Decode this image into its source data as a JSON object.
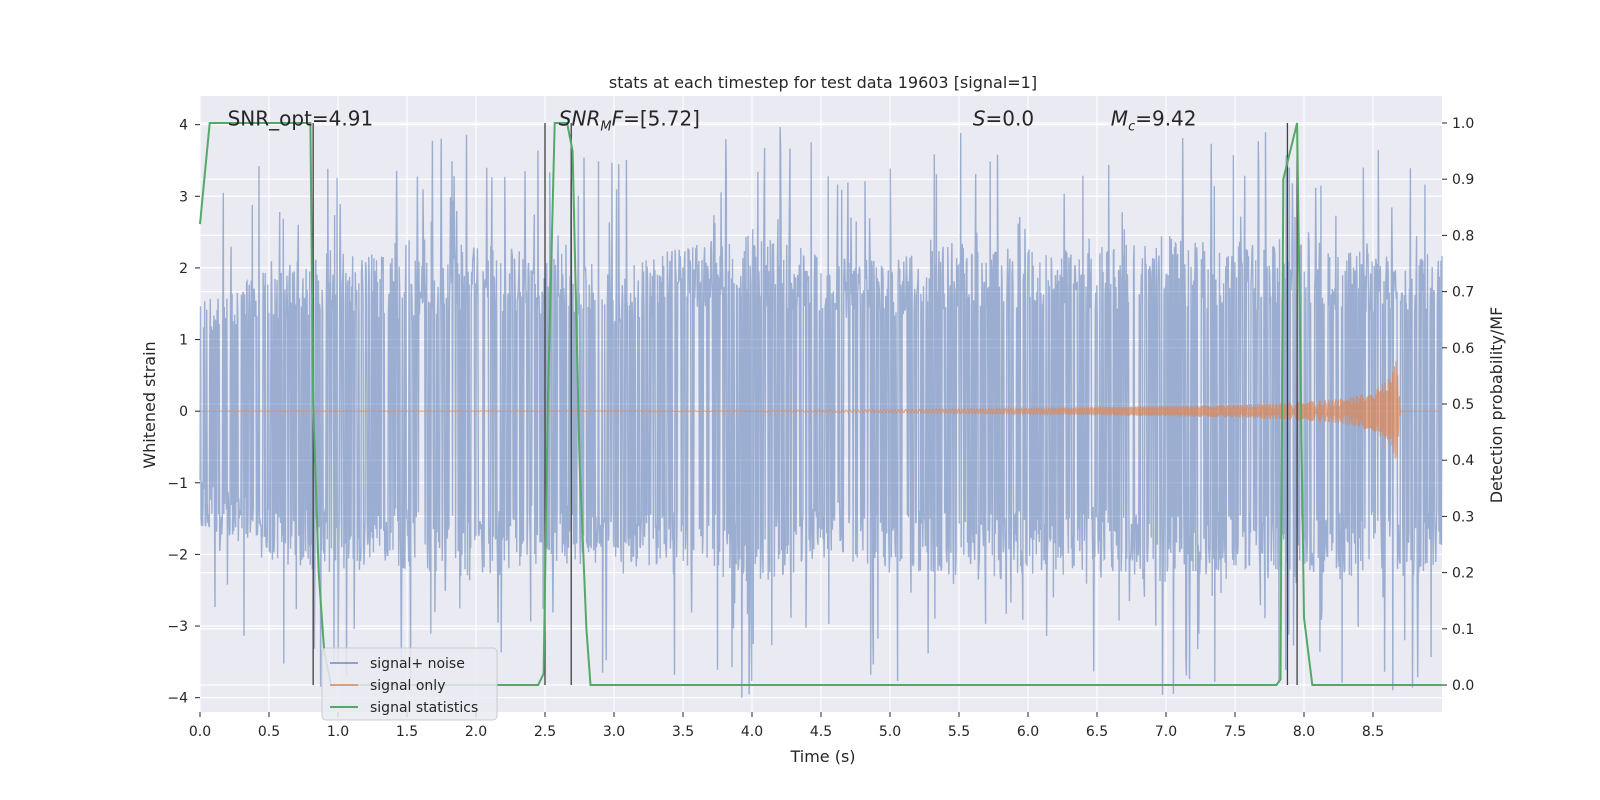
{
  "chart_data": {
    "type": "line",
    "title": "stats at each timestep for test data 19603 [signal=1]",
    "xlabel": "Time (s)",
    "ylabel": "Whitened strain",
    "y2label": "Detection probability/MF",
    "xlim": [
      0.0,
      9.0
    ],
    "ylim": [
      -4.2,
      4.4
    ],
    "y2lim": [
      -0.048,
      1.048
    ],
    "x_ticks": [
      "0.0",
      "0.5",
      "1.0",
      "1.5",
      "2.0",
      "2.5",
      "3.0",
      "3.5",
      "4.0",
      "4.5",
      "5.0",
      "5.5",
      "6.0",
      "6.5",
      "7.0",
      "7.5",
      "8.0",
      "8.5"
    ],
    "y_ticks": [
      "4",
      "3",
      "2",
      "1",
      "0",
      "−1",
      "−2",
      "−3",
      "−4"
    ],
    "y2_ticks": [
      "1.0",
      "0.9",
      "0.8",
      "0.7",
      "0.6",
      "0.5",
      "0.4",
      "0.3",
      "0.2",
      "0.1",
      "0.0"
    ],
    "grid": true,
    "legend_position": "lower-left",
    "annotations": [
      {
        "id": "snr-opt",
        "text": "SNR_opt=4.91",
        "x": 0.2,
        "y": 4.1
      },
      {
        "id": "snr-mf",
        "text": "SNR_MF=[5.72]",
        "x": 2.6,
        "y": 4.1
      },
      {
        "id": "s",
        "text": "S=0.0",
        "x": 5.6,
        "y": 4.1
      },
      {
        "id": "mc",
        "text": "M_c=9.42",
        "x": 6.6,
        "y": 4.1
      }
    ],
    "series": [
      {
        "name": "signal+ noise",
        "color": "#4c72b0",
        "opacity": 0.5,
        "description": "whitened noisy strain, ~±2 sigma band with spikes up to ±4",
        "envelope_upper": [
          1.5,
          2.0,
          2.3,
          2.1,
          2.4,
          2.2,
          2.0,
          2.3,
          2.5,
          2.2,
          2.1,
          2.4,
          2.3,
          2.2,
          2.5,
          2.3,
          2.4,
          2.2
        ],
        "envelope_lower": [
          -1.6,
          -2.1,
          -2.3,
          -2.2,
          -2.4,
          -2.1,
          -2.2,
          -2.3,
          -2.5,
          -2.1,
          -2.2,
          -2.4,
          -2.3,
          -2.2,
          -2.4,
          -2.3,
          -2.4,
          -2.3
        ]
      },
      {
        "name": "signal only",
        "color": "#dd8452",
        "description": "chirp waveform growing in amplitude until merger near t=8.67 s",
        "x": [
          0.0,
          4.0,
          5.0,
          6.0,
          7.0,
          7.5,
          8.0,
          8.3,
          8.5,
          8.6,
          8.65,
          8.67,
          8.7,
          9.0
        ],
        "amplitude": [
          0.0,
          0.005,
          0.02,
          0.04,
          0.07,
          0.09,
          0.13,
          0.18,
          0.28,
          0.42,
          0.6,
          0.72,
          0.0,
          0.0
        ]
      },
      {
        "name": "signal statistics",
        "color": "#55a868",
        "axis": "right",
        "x": [
          0.0,
          0.07,
          0.12,
          0.55,
          0.8,
          0.82,
          0.86,
          0.9,
          0.95,
          2.45,
          2.49,
          2.52,
          2.57,
          2.66,
          2.7,
          2.75,
          2.8,
          2.83,
          7.8,
          7.83,
          7.85,
          7.9,
          7.95,
          8.0,
          8.06,
          9.0
        ],
        "values": [
          0.82,
          1.0,
          1.0,
          1.0,
          1.0,
          0.5,
          0.2,
          0.06,
          0.0,
          0.0,
          0.02,
          0.5,
          1.0,
          1.0,
          0.95,
          0.4,
          0.1,
          0.0,
          0.0,
          0.01,
          0.9,
          0.95,
          1.0,
          0.12,
          0.0,
          0.0
        ]
      }
    ],
    "vertical_lines": [
      0.82,
      2.5,
      2.69,
      7.88,
      7.95
    ]
  }
}
